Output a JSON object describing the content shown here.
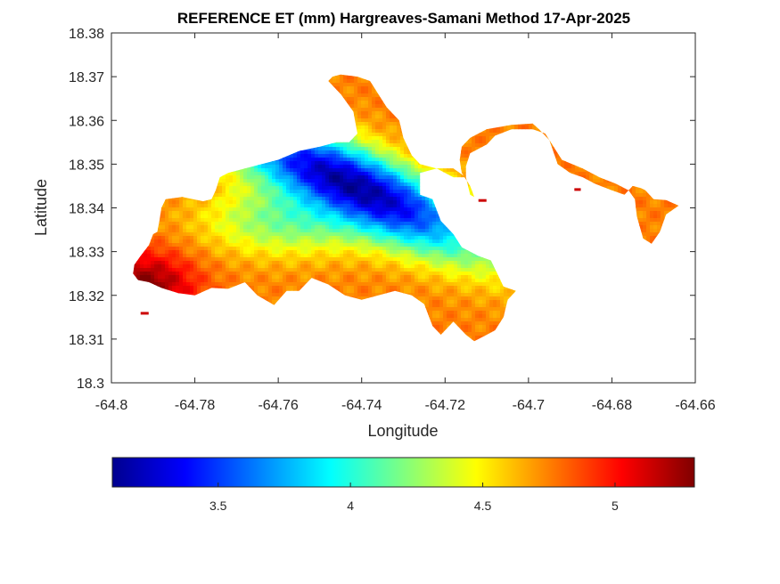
{
  "chart_data": {
    "type": "heatmap",
    "title": "REFERENCE ET (mm) Hargreaves-Samani Method  17-Apr-2025",
    "xlabel": "Longitude",
    "ylabel": "Latitude",
    "xlim": [
      -64.8,
      -64.66
    ],
    "ylim": [
      18.3,
      18.38
    ],
    "xticks": [
      -64.8,
      -64.78,
      -64.76,
      -64.74,
      -64.72,
      -64.7,
      -64.68,
      -64.66
    ],
    "xtick_labels": [
      "-64.8",
      "-64.78",
      "-64.76",
      "-64.74",
      "-64.72",
      "-64.7",
      "-64.68",
      "-64.66"
    ],
    "yticks": [
      18.3,
      18.31,
      18.32,
      18.33,
      18.34,
      18.35,
      18.36,
      18.37,
      18.38
    ],
    "ytick_labels": [
      "18.3",
      "18.31",
      "18.32",
      "18.33",
      "18.34",
      "18.35",
      "18.36",
      "18.37",
      "18.38"
    ],
    "colormap": "jet",
    "colorbar": {
      "orientation": "horizontal",
      "placement": "bottom",
      "range": [
        3.1,
        5.3
      ],
      "ticks": [
        3.5,
        4,
        4.5,
        5
      ],
      "tick_labels": [
        "3.5",
        "4",
        "4.5",
        "5"
      ]
    },
    "field": {
      "base": 4.75,
      "low_centre": [
        -64.742,
        18.345
      ],
      "low_value": 3.15,
      "high_centre": [
        -64.792,
        18.322
      ],
      "high_value": 5.3,
      "trend_axis": "northwest-southeast",
      "note_trend": "values increase to the southwest and southeast of a low-valued band running from about (-64.765, 18.352) to (-64.715, 18.328)"
    },
    "land_outline": [
      [
        -64.7936,
        18.3235
      ],
      [
        -64.791,
        18.323
      ],
      [
        -64.788,
        18.3217
      ],
      [
        -64.784,
        18.3205
      ],
      [
        -64.78,
        18.32
      ],
      [
        -64.776,
        18.3217
      ],
      [
        -64.772,
        18.3215
      ],
      [
        -64.768,
        18.323
      ],
      [
        -64.765,
        18.32
      ],
      [
        -64.761,
        18.3178
      ],
      [
        -64.758,
        18.321
      ],
      [
        -64.755,
        18.321
      ],
      [
        -64.752,
        18.324
      ],
      [
        -64.748,
        18.3225
      ],
      [
        -64.744,
        18.32
      ],
      [
        -64.74,
        18.319
      ],
      [
        -64.736,
        18.32
      ],
      [
        -64.732,
        18.321
      ],
      [
        -64.728,
        18.32
      ],
      [
        -64.725,
        18.318
      ],
      [
        -64.723,
        18.313
      ],
      [
        -64.721,
        18.311
      ],
      [
        -64.718,
        18.314
      ],
      [
        -64.715,
        18.311
      ],
      [
        -64.713,
        18.3095
      ],
      [
        -64.71,
        18.311
      ],
      [
        -64.708,
        18.312
      ],
      [
        -64.706,
        18.315
      ],
      [
        -64.705,
        18.319
      ],
      [
        -64.703,
        18.321
      ],
      [
        -64.706,
        18.322
      ],
      [
        -64.708,
        18.326
      ],
      [
        -64.709,
        18.328
      ],
      [
        -64.712,
        18.329
      ],
      [
        -64.716,
        18.331
      ],
      [
        -64.718,
        18.334
      ],
      [
        -64.721,
        18.337
      ],
      [
        -64.723,
        18.342
      ],
      [
        -64.726,
        18.343
      ],
      [
        -64.726,
        18.348
      ],
      [
        -64.722,
        18.349
      ],
      [
        -64.718,
        18.349
      ],
      [
        -64.715,
        18.347
      ],
      [
        -64.714,
        18.343
      ],
      [
        -64.713,
        18.3425
      ],
      [
        -64.714,
        18.345
      ],
      [
        -64.716,
        18.348
      ],
      [
        -64.7165,
        18.351
      ],
      [
        -64.716,
        18.354
      ],
      [
        -64.714,
        18.356
      ],
      [
        -64.71,
        18.358
      ],
      [
        -64.704,
        18.359
      ],
      [
        -64.699,
        18.3593
      ],
      [
        -64.6975,
        18.358
      ],
      [
        -64.695,
        18.3555
      ],
      [
        -64.693,
        18.35
      ],
      [
        -64.69,
        18.348
      ],
      [
        -64.687,
        18.347
      ],
      [
        -64.684,
        18.3455
      ],
      [
        -64.68,
        18.344
      ],
      [
        -64.677,
        18.343
      ],
      [
        -64.675,
        18.345
      ],
      [
        -64.673,
        18.3445
      ],
      [
        -64.672,
        18.344
      ],
      [
        -64.67,
        18.342
      ],
      [
        -64.667,
        18.3418
      ],
      [
        -64.664,
        18.3405
      ],
      [
        -64.667,
        18.3385
      ],
      [
        -64.6685,
        18.3345
      ],
      [
        -64.6705,
        18.3318
      ],
      [
        -64.6725,
        18.333
      ],
      [
        -64.674,
        18.338
      ],
      [
        -64.6745,
        18.342
      ],
      [
        -64.676,
        18.344
      ],
      [
        -64.679,
        18.3455
      ],
      [
        -64.683,
        18.347
      ],
      [
        -64.687,
        18.349
      ],
      [
        -64.692,
        18.351
      ],
      [
        -64.695,
        18.3555
      ],
      [
        -64.696,
        18.357
      ],
      [
        -64.699,
        18.358
      ],
      [
        -64.704,
        18.358
      ],
      [
        -64.708,
        18.3565
      ],
      [
        -64.71,
        18.3545
      ],
      [
        -64.714,
        18.3525
      ],
      [
        -64.715,
        18.3495
      ],
      [
        -64.715,
        18.347
      ],
      [
        -64.718,
        18.347
      ],
      [
        -64.722,
        18.349
      ],
      [
        -64.726,
        18.35
      ],
      [
        -64.728,
        18.352
      ],
      [
        -64.73,
        18.356
      ],
      [
        -64.731,
        18.36
      ],
      [
        -64.734,
        18.363
      ],
      [
        -64.736,
        18.366
      ],
      [
        -64.738,
        18.369
      ],
      [
        -64.741,
        18.37
      ],
      [
        -64.745,
        18.3705
      ],
      [
        -64.747,
        18.37
      ],
      [
        -64.748,
        18.369
      ],
      [
        -64.745,
        18.366
      ],
      [
        -64.742,
        18.362
      ],
      [
        -64.741,
        18.357
      ],
      [
        -64.743,
        18.355
      ],
      [
        -64.746,
        18.355
      ],
      [
        -64.75,
        18.354
      ],
      [
        -64.755,
        18.353
      ],
      [
        -64.76,
        18.351
      ],
      [
        -64.764,
        18.35
      ],
      [
        -64.768,
        18.349
      ],
      [
        -64.772,
        18.348
      ],
      [
        -64.774,
        18.347
      ],
      [
        -64.775,
        18.344
      ],
      [
        -64.776,
        18.342
      ],
      [
        -64.778,
        18.3415
      ],
      [
        -64.783,
        18.3425
      ],
      [
        -64.787,
        18.342
      ],
      [
        -64.788,
        18.34
      ],
      [
        -64.7885,
        18.337
      ],
      [
        -64.789,
        18.3345
      ],
      [
        -64.79,
        18.334
      ],
      [
        -64.791,
        18.3315
      ],
      [
        -64.793,
        18.329
      ],
      [
        -64.7945,
        18.327
      ],
      [
        -64.7948,
        18.325
      ]
    ]
  }
}
